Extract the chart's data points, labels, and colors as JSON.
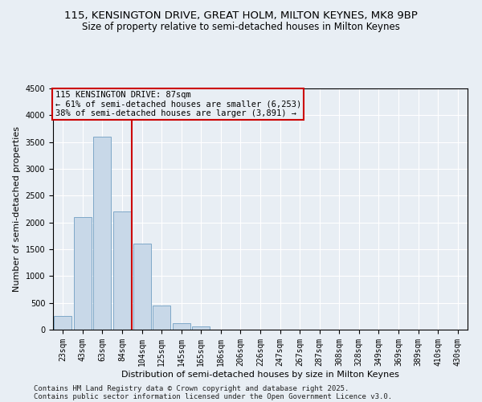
{
  "title1": "115, KENSINGTON DRIVE, GREAT HOLM, MILTON KEYNES, MK8 9BP",
  "title2": "Size of property relative to semi-detached houses in Milton Keynes",
  "xlabel": "Distribution of semi-detached houses by size in Milton Keynes",
  "ylabel": "Number of semi-detached properties",
  "categories": [
    "23sqm",
    "43sqm",
    "63sqm",
    "84sqm",
    "104sqm",
    "125sqm",
    "145sqm",
    "165sqm",
    "186sqm",
    "206sqm",
    "226sqm",
    "247sqm",
    "267sqm",
    "287sqm",
    "308sqm",
    "328sqm",
    "349sqm",
    "369sqm",
    "389sqm",
    "410sqm",
    "430sqm"
  ],
  "values": [
    250,
    2100,
    3600,
    2200,
    1600,
    450,
    120,
    60,
    5,
    0,
    0,
    0,
    0,
    0,
    0,
    0,
    0,
    0,
    0,
    0,
    0
  ],
  "bar_color": "#c8d8e8",
  "bar_edge_color": "#7fa8c8",
  "vline_x": 3.5,
  "vline_color": "#cc0000",
  "annotation_text": "115 KENSINGTON DRIVE: 87sqm\n← 61% of semi-detached houses are smaller (6,253)\n38% of semi-detached houses are larger (3,891) →",
  "annotation_box_color": "#cc0000",
  "ylim": [
    0,
    4500
  ],
  "yticks": [
    0,
    500,
    1000,
    1500,
    2000,
    2500,
    3000,
    3500,
    4000,
    4500
  ],
  "background_color": "#e8eef4",
  "footer1": "Contains HM Land Registry data © Crown copyright and database right 2025.",
  "footer2": "Contains public sector information licensed under the Open Government Licence v3.0.",
  "title1_fontsize": 9.5,
  "title2_fontsize": 8.5,
  "xlabel_fontsize": 8,
  "ylabel_fontsize": 8,
  "tick_fontsize": 7,
  "annotation_fontsize": 7.5,
  "footer_fontsize": 6.5
}
